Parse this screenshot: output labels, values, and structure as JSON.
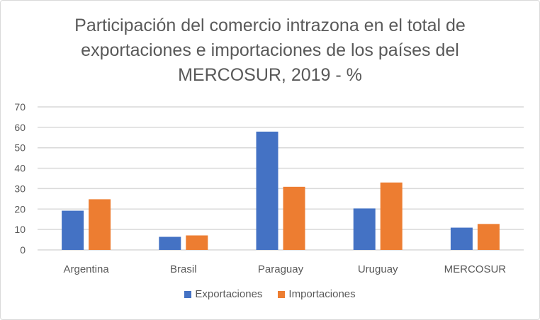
{
  "chart_data": {
    "type": "bar",
    "title": "Participación del comercio intrazona en el total de exportaciones e importaciones de los países del MERCOSUR, 2019 - %",
    "title_lines": [
      "Participación del comercio intrazona en el total de",
      "exportaciones e importaciones de los países del",
      "MERCOSUR, 2019 - %"
    ],
    "categories": [
      "Argentina",
      "Brasil",
      "Paraguay",
      "Uruguay",
      "MERCOSUR"
    ],
    "series": [
      {
        "name": "Exportaciones",
        "color": "#4472c4",
        "values": [
          19.2,
          6.4,
          57.9,
          20.3,
          10.9
        ]
      },
      {
        "name": "Importaciones",
        "color": "#ed7d31",
        "values": [
          24.8,
          7.1,
          30.9,
          33.0,
          12.7
        ]
      }
    ],
    "ylim": [
      0,
      70
    ],
    "yticks": [
      0,
      10,
      20,
      30,
      40,
      50,
      60,
      70
    ],
    "xlabel": "",
    "ylabel": "",
    "grid": true,
    "legend": "bottom"
  }
}
